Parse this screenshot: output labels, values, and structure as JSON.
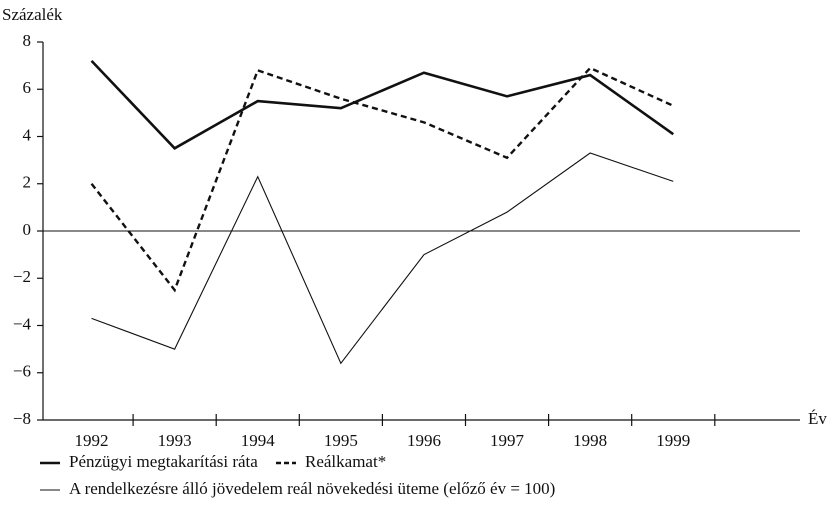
{
  "chart_data": {
    "type": "line",
    "y_label": "Százalék",
    "x_label": "Év",
    "categories": [
      "1992",
      "1993",
      "1994",
      "1995",
      "1996",
      "1997",
      "1998",
      "1999"
    ],
    "series": [
      {
        "name": "Pénzügyi megtakarítási ráta",
        "color": "#111111",
        "line_style": "solid",
        "line_width": 2.6,
        "values": [
          7.2,
          3.5,
          5.5,
          5.2,
          6.7,
          5.7,
          6.6,
          4.1
        ]
      },
      {
        "name": "Reálkamat*",
        "color": "#111111",
        "line_style": "dashed",
        "line_width": 2.4,
        "values": [
          2.0,
          -2.5,
          6.8,
          5.6,
          4.6,
          3.1,
          6.9,
          5.3
        ]
      },
      {
        "name": "A rendelkezésre álló jövedelem reál növekedési üteme (előző év = 100)",
        "color": "#111111",
        "line_style": "solid",
        "line_width": 1.1,
        "values": [
          -3.7,
          -5.0,
          2.3,
          -5.6,
          -1.0,
          0.8,
          3.3,
          2.1
        ]
      }
    ],
    "ylim": [
      -8,
      8
    ],
    "yticks": [
      {
        "value": -8,
        "label": "−8"
      },
      {
        "value": -6,
        "label": "−6"
      },
      {
        "value": -4,
        "label": "−4"
      },
      {
        "value": -2,
        "label": "−2"
      },
      0,
      2,
      4,
      6,
      8
    ]
  }
}
